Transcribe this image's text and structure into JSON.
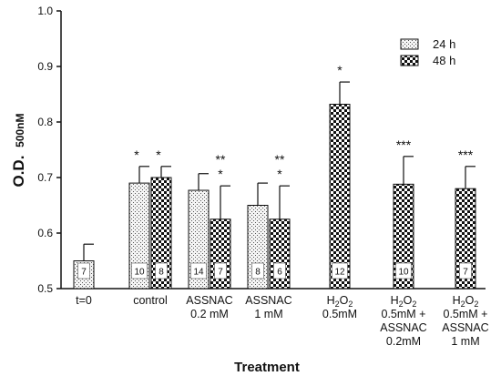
{
  "chart_data": {
    "type": "bar",
    "xlabel": "Treatment",
    "ylabel_main": "O.D.",
    "ylabel_sub": "500nM",
    "ylim": [
      0.5,
      1.0
    ],
    "yticks": [
      "0.5",
      "0.6",
      "0.7",
      "0.8",
      "0.9",
      "1.0"
    ],
    "legend_position": "top-right",
    "series": [
      {
        "name": "24 h",
        "pattern": "dotted"
      },
      {
        "name": "48 h",
        "pattern": "checkered"
      }
    ],
    "categories": [
      {
        "lines": [
          "t=0"
        ],
        "bars": [
          {
            "series": null,
            "value": 0.55,
            "error": 0.03,
            "n": "7",
            "sig": ""
          }
        ]
      },
      {
        "lines": [
          "control"
        ],
        "bars": [
          {
            "series": "24 h",
            "value": 0.69,
            "error": 0.03,
            "n": "10",
            "sig": "*"
          },
          {
            "series": "48 h",
            "value": 0.7,
            "error": 0.02,
            "n": "8",
            "sig": "*"
          }
        ]
      },
      {
        "lines": [
          "ASSNAC",
          "0.2 mM"
        ],
        "bars": [
          {
            "series": "24 h",
            "value": 0.677,
            "error": 0.03,
            "n": "14",
            "sig": ""
          },
          {
            "series": "48 h",
            "value": 0.625,
            "error": 0.06,
            "n": "7",
            "sig": "**|*"
          }
        ]
      },
      {
        "lines": [
          "ASSNAC",
          "1 mM"
        ],
        "bars": [
          {
            "series": "24 h",
            "value": 0.65,
            "error": 0.04,
            "n": "8",
            "sig": ""
          },
          {
            "series": "48 h",
            "value": 0.625,
            "error": 0.06,
            "n": "6",
            "sig": "**|*"
          }
        ]
      },
      {
        "lines": [
          "H2O2",
          "0.5mM"
        ],
        "bars": [
          {
            "series": "48 h",
            "value": 0.832,
            "error": 0.04,
            "n": "12",
            "sig": "*"
          }
        ]
      },
      {
        "lines": [
          "H2O2",
          "0.5mM +",
          "ASSNAC",
          "0.2mM"
        ],
        "bars": [
          {
            "series": "48 h",
            "value": 0.688,
            "error": 0.05,
            "n": "10",
            "sig": "***"
          }
        ]
      },
      {
        "lines": [
          "H2O2",
          "0.5mM +",
          "ASSNAC",
          "1 mM"
        ],
        "bars": [
          {
            "series": "48 h",
            "value": 0.68,
            "error": 0.04,
            "n": "7",
            "sig": "***"
          }
        ]
      }
    ]
  }
}
